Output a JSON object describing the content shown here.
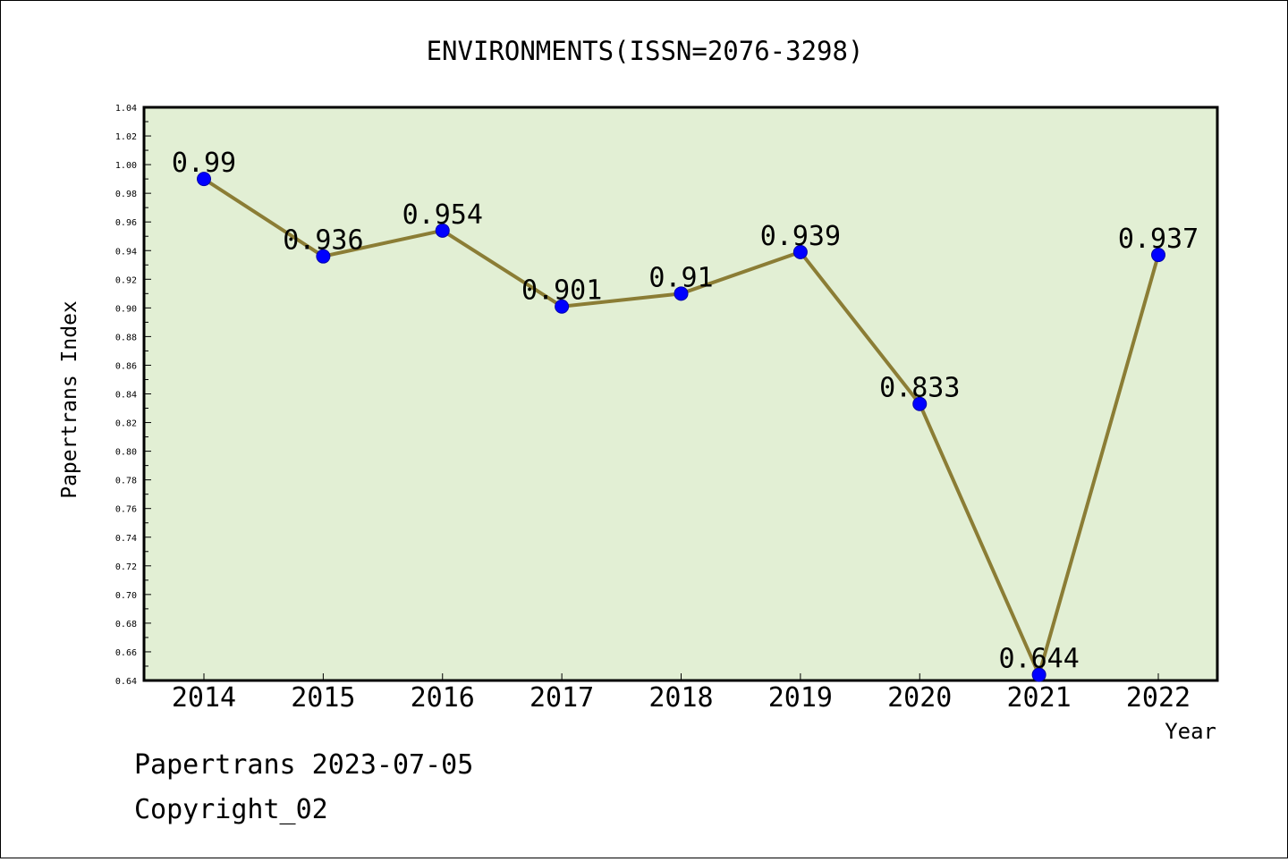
{
  "chart_data": {
    "type": "line",
    "title": "ENVIRONMENTS(ISSN=2076-3298)",
    "xlabel": "Year",
    "ylabel": "Papertrans Index",
    "categories": [
      "2014",
      "2015",
      "2016",
      "2017",
      "2018",
      "2019",
      "2020",
      "2021",
      "2022"
    ],
    "values": [
      0.99,
      0.936,
      0.954,
      0.901,
      0.91,
      0.939,
      0.833,
      0.644,
      0.937
    ],
    "data_labels": [
      "0.99",
      "0.936",
      "0.954",
      "0.901",
      "0.91",
      "0.939",
      "0.833",
      "0.644",
      "0.937"
    ],
    "ylim": [
      0.64,
      1.04
    ],
    "yticks": [
      "0.64",
      "0.66",
      "0.68",
      "0.70",
      "0.72",
      "0.74",
      "0.76",
      "0.78",
      "0.80",
      "0.82",
      "0.84",
      "0.86",
      "0.88",
      "0.90",
      "0.92",
      "0.94",
      "0.96",
      "0.98",
      "1.00",
      "1.02",
      "1.04"
    ],
    "grid": false,
    "legend": "none",
    "colors": {
      "plot_background": "#e2efd4",
      "line": "#8b7d35",
      "marker": "#0000ff"
    }
  },
  "footer": {
    "line1": "Papertrans 2023-07-05",
    "line2": "Copyright_02"
  }
}
